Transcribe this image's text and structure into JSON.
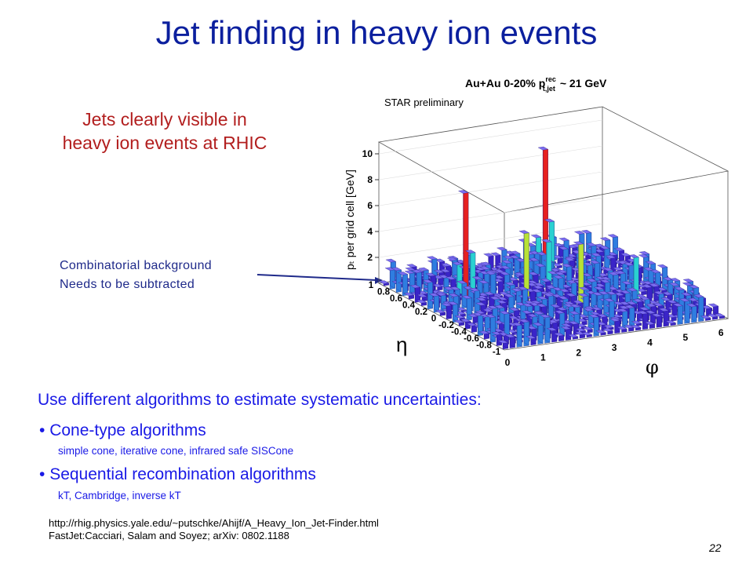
{
  "slide": {
    "title": "Jet finding in heavy ion events",
    "subtitle_line1": "Jets clearly visible in",
    "subtitle_line2": "heavy ion events at RHIC",
    "annotation_line1": "Combinatorial background",
    "annotation_line2": "Needs to be subtracted",
    "page_number": "22"
  },
  "plot": {
    "header_text": "Au+Au 0-20% p",
    "header_sup": "rec",
    "header_sub": "t,jet",
    "header_tail": "~ 21 GeV",
    "preliminary": "STAR preliminary",
    "z_axis_label": "pₜ per grid cell [GeV]",
    "z_ticks": [
      "2",
      "4",
      "6",
      "8",
      "10"
    ],
    "eta_symbol": "η",
    "eta_ticks": [
      "1",
      "0.8",
      "0.6",
      "0.4",
      "0.2",
      "0",
      "-0.2",
      "-0.4",
      "-0.6",
      "-0.8",
      "-1"
    ],
    "phi_symbol": "φ",
    "phi_ticks": [
      "0",
      "1",
      "2",
      "3",
      "4",
      "5",
      "6"
    ],
    "colors": {
      "low": "#2a1fb8",
      "mid": "#2ad1d1",
      "high": "#e62020"
    }
  },
  "body": {
    "intro": "Use different algorithms to estimate systematic uncertainties:",
    "bullets": [
      {
        "label": "Cone-type algorithms",
        "detail": "simple cone, iterative cone, infrared safe SISCone"
      },
      {
        "label": "Sequential recombination algorithms",
        "detail": "kT, Cambridge, inverse kT"
      }
    ]
  },
  "references": {
    "url": "http://rhig.physics.yale.edu/~putschke/Ahijf/A_Heavy_Ion_Jet-Finder.html",
    "citation": "FastJet:Cacciari, Salam  and Soyez; arXiv: 0802.1188"
  }
}
